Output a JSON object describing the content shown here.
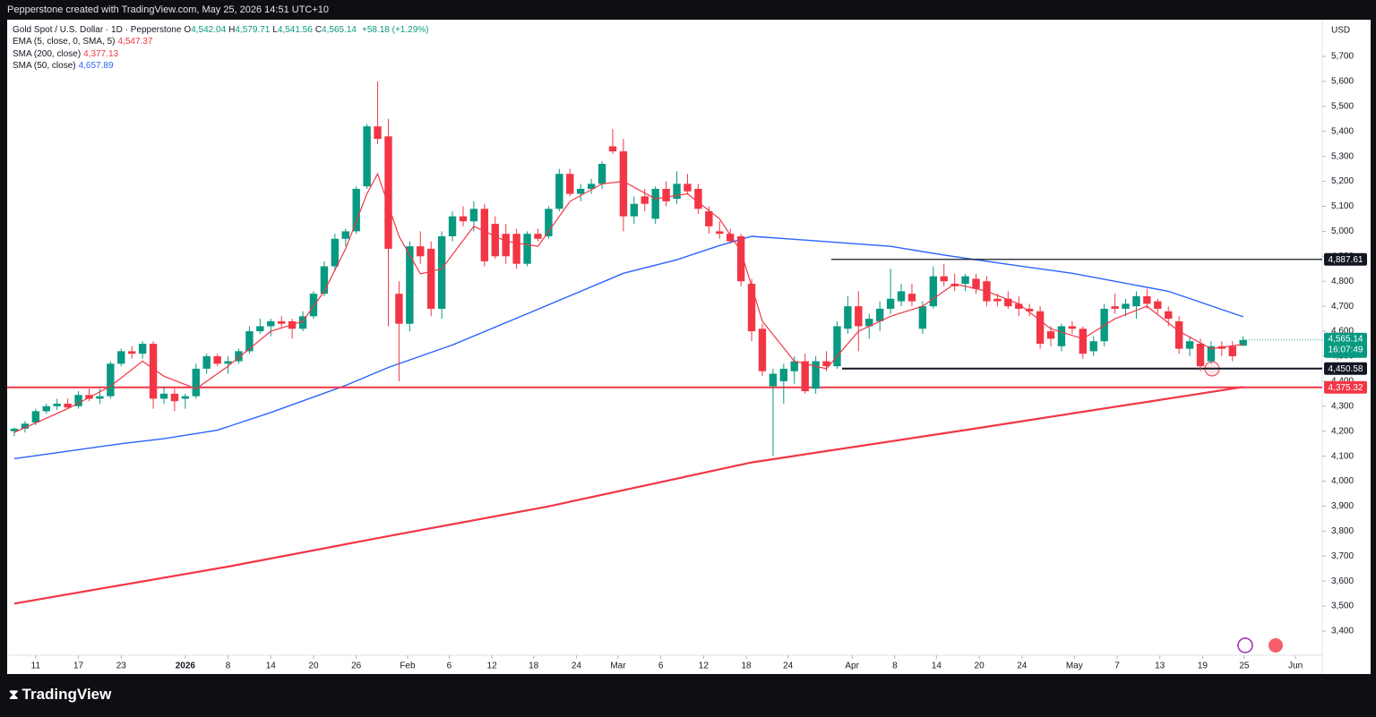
{
  "page": {
    "top_note": "Pepperstone created with TradingView.com, May 25, 2026 14:51 UTC+10",
    "brand": "TradingView"
  },
  "chart_data": {
    "type": "candlestick",
    "title": "Gold Spot / U.S. Dollar · 1D · Pepperstone",
    "ohlc_labels": [
      {
        "key": "O",
        "value": "4,542.04"
      },
      {
        "key": "H",
        "value": "4,579.71"
      },
      {
        "key": "L",
        "value": "4,541.56"
      },
      {
        "key": "C",
        "value": "4,565.14"
      }
    ],
    "change": "+58.18 (+1.29%)",
    "currency": "USD",
    "up_color": "#089981",
    "down_color": "#f23645",
    "open": [
      4200,
      4210,
      4235,
      4280,
      4300,
      4310,
      4300,
      4345,
      4330,
      4340,
      4470,
      4520,
      4510,
      4550,
      4330,
      4350,
      4330,
      4340,
      4450,
      4500,
      4470,
      4480,
      4520,
      4600,
      4620,
      4640,
      4640,
      4610,
      4660,
      4750,
      4860,
      4970,
      5000,
      5180,
      5420,
      5380,
      4750,
      4630,
      4940,
      4930,
      4690,
      4980,
      5060,
      5040,
      5090,
      5030,
      4990,
      4990,
      4870,
      4990,
      4980,
      5090,
      5230,
      5150,
      5170,
      5190,
      5340,
      5320,
      5060,
      5140,
      5050,
      5170,
      5130,
      5190,
      5170,
      5080,
      5000,
      4990,
      4980,
      4790,
      4610,
      4380,
      4400,
      4440,
      4480,
      4370,
      4480,
      4460,
      4610,
      4700,
      4620,
      4640,
      4690,
      4720,
      4750,
      4610,
      4700,
      4820,
      4790,
      4790,
      4810,
      4800,
      4730,
      4730,
      4710,
      4690,
      4680,
      4600,
      4540,
      4620,
      4610,
      4520,
      4560,
      4700,
      4690,
      4700,
      4740,
      4720,
      4680,
      4640,
      4530,
      4550,
      4480,
      4540,
      4540,
      4542.04
    ],
    "high": [
      4215,
      4240,
      4290,
      4310,
      4330,
      4330,
      4360,
      4370,
      4370,
      4480,
      4530,
      4540,
      4560,
      4560,
      4380,
      4370,
      4350,
      4470,
      4510,
      4510,
      4500,
      4530,
      4620,
      4650,
      4650,
      4660,
      4650,
      4680,
      4760,
      4880,
      4990,
      5010,
      5180,
      5430,
      5600,
      5450,
      4800,
      4960,
      5000,
      4960,
      5000,
      5080,
      5100,
      5120,
      5110,
      5060,
      5030,
      5010,
      5000,
      5010,
      5100,
      5250,
      5250,
      5190,
      5210,
      5280,
      5410,
      5370,
      5140,
      5170,
      5180,
      5200,
      5240,
      5230,
      5190,
      5100,
      5040,
      5010,
      4990,
      4810,
      4630,
      4450,
      4470,
      4500,
      4510,
      4500,
      4520,
      4640,
      4740,
      4760,
      4670,
      4720,
      4850,
      4790,
      4790,
      4720,
      4860,
      4870,
      4830,
      4830,
      4830,
      4820,
      4750,
      4760,
      4740,
      4710,
      4700,
      4620,
      4630,
      4640,
      4620,
      4580,
      4710,
      4750,
      4730,
      4760,
      4770,
      4730,
      4700,
      4660,
      4580,
      4570,
      4560,
      4560,
      4560,
      4579.71
    ],
    "low": [
      4180,
      4195,
      4225,
      4270,
      4285,
      4290,
      4290,
      4320,
      4310,
      4330,
      4460,
      4490,
      4490,
      4290,
      4310,
      4280,
      4290,
      4330,
      4430,
      4460,
      4430,
      4470,
      4510,
      4590,
      4580,
      4610,
      4570,
      4600,
      4650,
      4740,
      4840,
      4940,
      4990,
      5170,
      5350,
      4620,
      4400,
      4600,
      4870,
      4660,
      4650,
      4960,
      5020,
      5000,
      4860,
      4890,
      4870,
      4850,
      4860,
      4960,
      4970,
      5080,
      5140,
      5120,
      5150,
      5170,
      5310,
      5000,
      5030,
      5080,
      5030,
      5100,
      5110,
      5150,
      5070,
      4990,
      4970,
      4950,
      4780,
      4560,
      4420,
      4100,
      4310,
      4390,
      4350,
      4350,
      4440,
      4450,
      4590,
      4520,
      4570,
      4600,
      4670,
      4700,
      4700,
      4590,
      4690,
      4780,
      4760,
      4760,
      4750,
      4700,
      4700,
      4690,
      4660,
      4660,
      4530,
      4540,
      4520,
      4590,
      4490,
      4500,
      4540,
      4670,
      4660,
      4650,
      4690,
      4670,
      4620,
      4510,
      4500,
      4440,
      4470,
      4500,
      4480,
      4541.56
    ],
    "close": [
      4210,
      4230,
      4280,
      4300,
      4310,
      4295,
      4345,
      4330,
      4340,
      4470,
      4520,
      4510,
      4550,
      4330,
      4350,
      4320,
      4340,
      4450,
      4500,
      4470,
      4480,
      4520,
      4600,
      4620,
      4640,
      4630,
      4610,
      4660,
      4750,
      4860,
      4970,
      5000,
      5170,
      5420,
      5370,
      4930,
      4630,
      4940,
      4900,
      4690,
      4980,
      5060,
      5040,
      5090,
      4880,
      4900,
      4900,
      4870,
      4990,
      4970,
      5090,
      5230,
      5150,
      5170,
      5190,
      5270,
      5320,
      5060,
      5110,
      5110,
      5170,
      5120,
      5190,
      5160,
      5090,
      5020,
      4990,
      4960,
      4800,
      4600,
      4440,
      4430,
      4450,
      4480,
      4360,
      4480,
      4460,
      4620,
      4700,
      4620,
      4650,
      4690,
      4730,
      4760,
      4720,
      4700,
      4820,
      4800,
      4780,
      4820,
      4770,
      4720,
      4720,
      4700,
      4690,
      4680,
      4550,
      4570,
      4620,
      4610,
      4510,
      4560,
      4690,
      4690,
      4710,
      4740,
      4710,
      4690,
      4650,
      4530,
      4560,
      4460,
      4540,
      4530,
      4500,
      4565.14
    ],
    "series": [
      {
        "name": "EMA (5, close, 0, SMA, 5)",
        "color": "#f23645",
        "width": 1.2,
        "last_label": "4,547.37",
        "x": [
          0,
          5,
          9,
          12,
          14,
          17,
          20,
          24,
          27,
          29,
          31,
          33,
          34,
          36,
          38,
          40,
          43,
          46,
          49,
          52,
          55,
          57,
          60,
          63,
          66,
          68,
          70,
          73,
          76,
          79,
          82,
          85,
          88,
          91,
          94,
          97,
          100,
          103,
          106,
          109,
          112,
          115
        ],
        "values": [
          4195,
          4290,
          4380,
          4480,
          4420,
          4370,
          4460,
          4600,
          4640,
          4760,
          4930,
          5150,
          5230,
          4980,
          4830,
          4850,
          5020,
          4960,
          4940,
          5120,
          5190,
          5200,
          5130,
          5150,
          5050,
          4920,
          4640,
          4480,
          4450,
          4600,
          4660,
          4700,
          4790,
          4760,
          4710,
          4610,
          4570,
          4650,
          4700,
          4600,
          4530,
          4547.37
        ]
      },
      {
        "name": "SMA (200, close)",
        "color": "#f23645",
        "width": 2.2,
        "last_label": "4,377.13",
        "x": [
          0,
          20,
          35,
          50,
          69,
          90,
          115
        ],
        "values": [
          3510,
          3658,
          3780,
          3899,
          4075,
          4211,
          4377.13
        ]
      },
      {
        "name": "SMA (50, close)",
        "color": "#2962ff",
        "width": 1.4,
        "last_label": "4,657.89",
        "x": [
          0,
          10,
          14,
          19,
          24,
          31,
          35,
          41,
          49,
          57,
          62,
          66,
          69,
          74,
          82,
          87,
          93,
          99,
          108,
          115
        ],
        "values": [
          4090,
          4150,
          4170,
          4204,
          4275,
          4383,
          4455,
          4545,
          4688,
          4832,
          4886,
          4943,
          4980,
          4965,
          4940,
          4905,
          4868,
          4832,
          4760,
          4657.89
        ]
      }
    ],
    "levels": [
      {
        "value": 4887.61,
        "label": "4,887.61",
        "color": "#131722"
      },
      {
        "value": 4450.58,
        "label": "4,450.58",
        "color": "#131722"
      },
      {
        "value": 4375.32,
        "label": "4,375.32",
        "color": "#f23645"
      }
    ],
    "last_price": {
      "value": 4565.14,
      "label": "4,565.14"
    },
    "countdown": "16:07:49",
    "xlim": [
      -0.67,
      122.4
    ],
    "xticks": [
      {
        "value": 2,
        "label": "11"
      },
      {
        "value": 6,
        "label": "17"
      },
      {
        "value": 10,
        "label": "23"
      },
      {
        "value": 16,
        "label": "2026"
      },
      {
        "value": 20,
        "label": "8"
      },
      {
        "value": 24,
        "label": "14"
      },
      {
        "value": 28,
        "label": "20"
      },
      {
        "value": 32,
        "label": "26"
      },
      {
        "value": 36.8,
        "label": "Feb"
      },
      {
        "value": 40.7,
        "label": "6"
      },
      {
        "value": 44.7,
        "label": "12"
      },
      {
        "value": 48.6,
        "label": "18"
      },
      {
        "value": 52.6,
        "label": "24"
      },
      {
        "value": 56.5,
        "label": "Mar"
      },
      {
        "value": 60.5,
        "label": "6"
      },
      {
        "value": 64.5,
        "label": "12"
      },
      {
        "value": 68.5,
        "label": "18"
      },
      {
        "value": 72.4,
        "label": "24"
      },
      {
        "value": 78.4,
        "label": "Apr"
      },
      {
        "value": 82.4,
        "label": "8"
      },
      {
        "value": 86.3,
        "label": "14"
      },
      {
        "value": 90.3,
        "label": "20"
      },
      {
        "value": 94.3,
        "label": "24"
      },
      {
        "value": 99.2,
        "label": "May"
      },
      {
        "value": 103.2,
        "label": "7"
      },
      {
        "value": 107.2,
        "label": "13"
      },
      {
        "value": 111.2,
        "label": "19"
      },
      {
        "value": 115.1,
        "label": "25"
      },
      {
        "value": 119.9,
        "label": "Jun"
      }
    ],
    "ylim": [
      3228,
      5847
    ],
    "yticks": [
      {
        "value": 3400,
        "label": "3,400"
      },
      {
        "value": 3500,
        "label": "3,500"
      },
      {
        "value": 3600,
        "label": "3,600"
      },
      {
        "value": 3700,
        "label": "3,700"
      },
      {
        "value": 3800,
        "label": "3,800"
      },
      {
        "value": 3900,
        "label": "3,900"
      },
      {
        "value": 4000,
        "label": "4,000"
      },
      {
        "value": 4100,
        "label": "4,100"
      },
      {
        "value": 4200,
        "label": "4,200"
      },
      {
        "value": 4300,
        "label": "4,300"
      },
      {
        "value": 4400,
        "label": "4,400"
      },
      {
        "value": 4500,
        "label": "4,500"
      },
      {
        "value": 4600,
        "label": "4,600"
      },
      {
        "value": 4700,
        "label": "4,700"
      },
      {
        "value": 4800,
        "label": "4,800"
      },
      {
        "value": 4900,
        "label": "4,900"
      },
      {
        "value": 5000,
        "label": "5,000"
      },
      {
        "value": 5100,
        "label": "5,100"
      },
      {
        "value": 5200,
        "label": "5,200"
      },
      {
        "value": 5300,
        "label": "5,300"
      },
      {
        "value": 5400,
        "label": "5,400"
      },
      {
        "value": 5500,
        "label": "5,500"
      },
      {
        "value": 5600,
        "label": "5,600"
      },
      {
        "value": 5700,
        "label": "5,700"
      }
    ]
  }
}
